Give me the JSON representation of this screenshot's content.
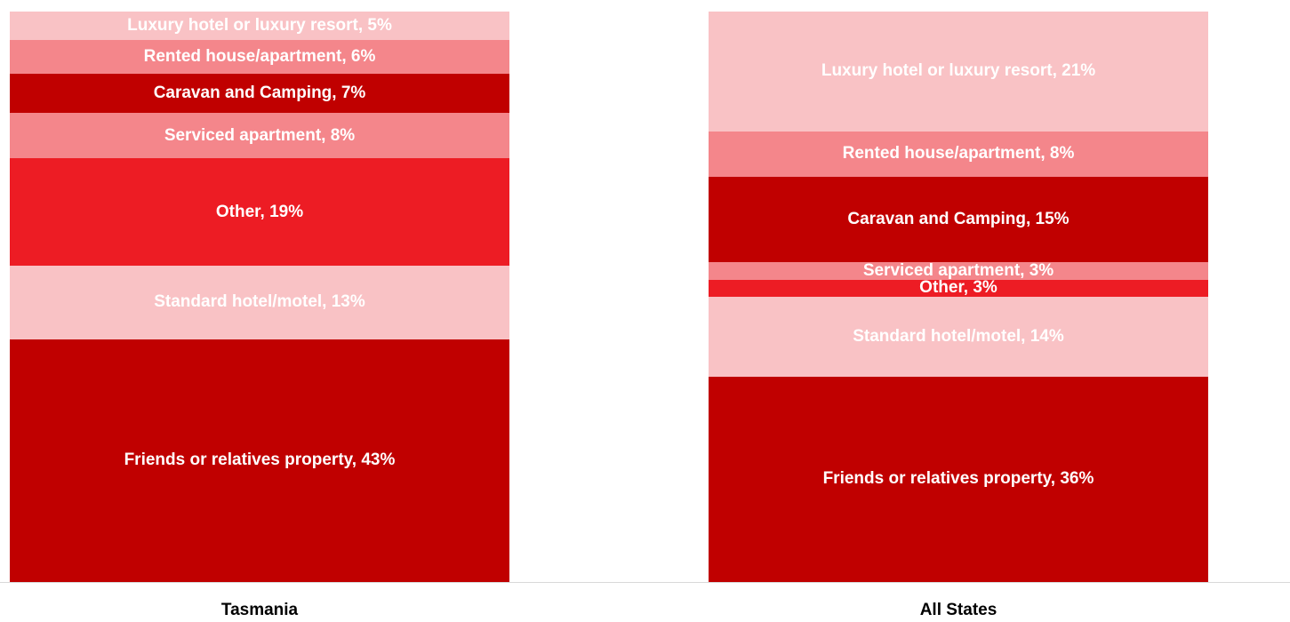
{
  "chart_data": {
    "type": "stacked_bar",
    "categories": [
      "Tasmania",
      "All States"
    ],
    "series": [
      {
        "name": "Friends or relatives property",
        "color": "#c00000",
        "values": [
          43,
          36
        ],
        "value_labels": [
          "Friends or relatives property, 43%",
          "Friends or relatives property, 36%"
        ]
      },
      {
        "name": "Standard hotel/motel",
        "color": "#f9c2c5",
        "values": [
          13,
          14
        ],
        "value_labels": [
          "Standard hotel/motel, 13%",
          "Standard hotel/motel, 14%"
        ]
      },
      {
        "name": "Other",
        "color": "#ed1c24",
        "values": [
          19,
          3
        ],
        "value_labels": [
          "Other, 19%",
          "Other, 3%"
        ]
      },
      {
        "name": "Serviced apartment",
        "color": "#f4868b",
        "values": [
          8,
          3
        ],
        "value_labels": [
          "Serviced apartment, 8%",
          "Serviced apartment, 3%"
        ]
      },
      {
        "name": "Caravan and Camping",
        "color": "#c00000",
        "values": [
          7,
          15
        ],
        "value_labels": [
          "Caravan and Camping, 7%",
          "Caravan and Camping, 15%"
        ]
      },
      {
        "name": "Rented house/apartment",
        "color": "#f4868b",
        "values": [
          6,
          8
        ],
        "value_labels": [
          "Rented house/apartment, 6%",
          "Rented house/apartment, 8%"
        ]
      },
      {
        "name": "Luxury hotel or luxury resort",
        "color": "#f9c2c5",
        "values": [
          5,
          21
        ],
        "value_labels": [
          "Luxury hotel or luxury resort, 5%",
          "Luxury hotel or luxury resort, 21%"
        ]
      }
    ]
  }
}
